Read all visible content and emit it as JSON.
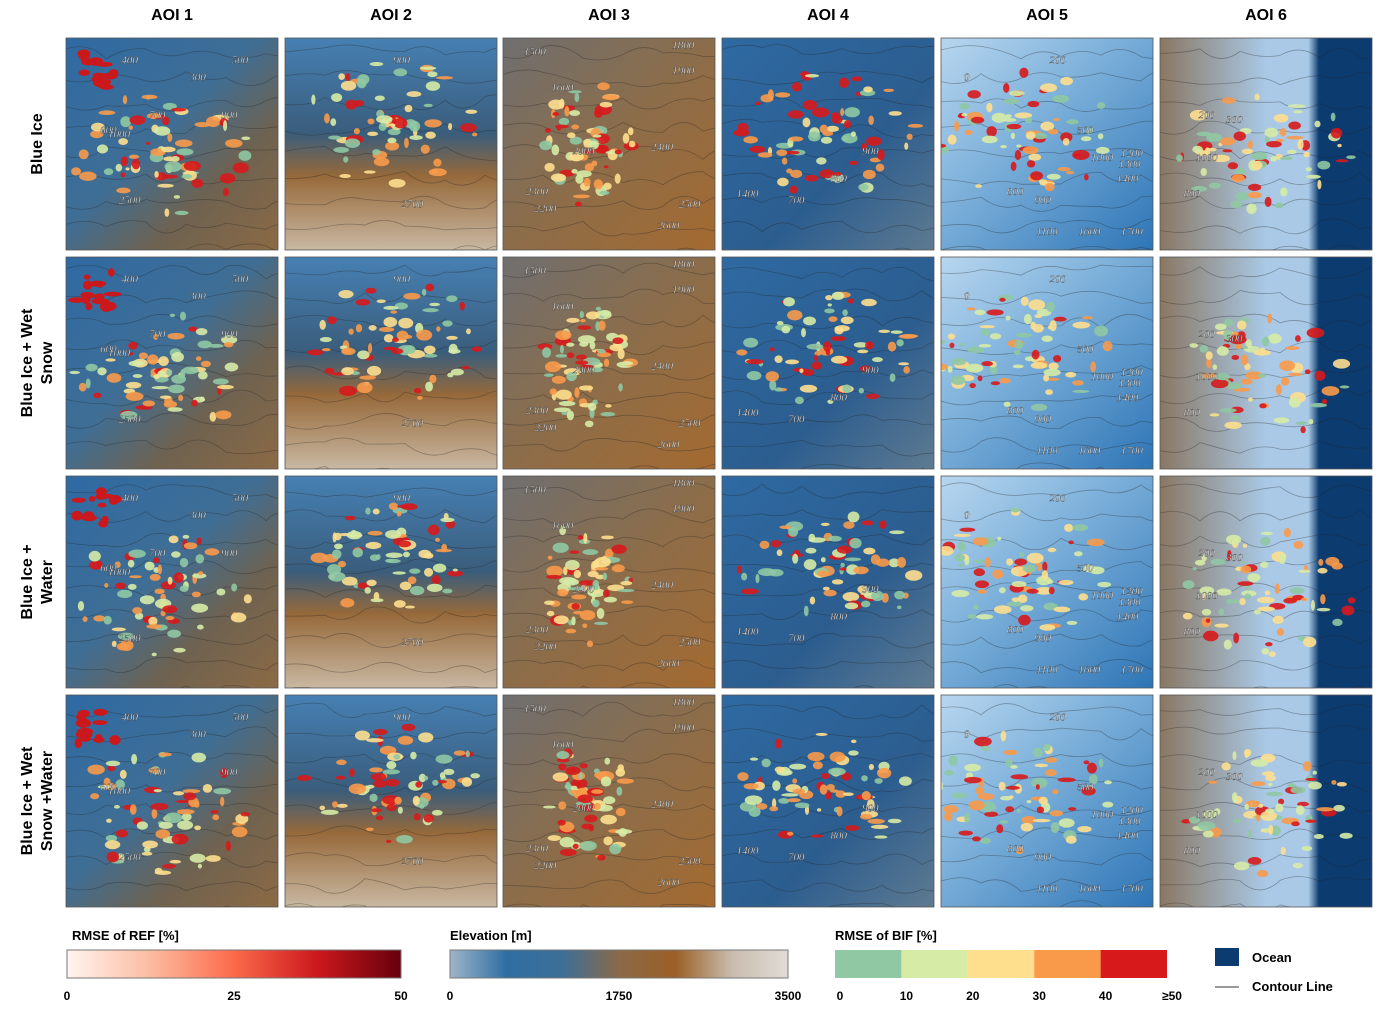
{
  "columns": [
    "AOI 1",
    "AOI 2",
    "AOI 3",
    "AOI 4",
    "AOI 5",
    "AOI 6"
  ],
  "rows": [
    [
      "Blue Ice"
    ],
    [
      "Blue Ice + Wet",
      "Snow"
    ],
    [
      "Blue Ice +",
      "Water"
    ],
    [
      "Blue Ice + Wet",
      "Snow +Water"
    ]
  ],
  "contour_labels": [
    [
      "400",
      "500",
      "300",
      "600",
      "700",
      "900",
      "1000",
      "2500"
    ],
    [
      "900",
      "2700"
    ],
    [
      "1500",
      "1800",
      "1900",
      "1600",
      "2000",
      "2400",
      "2300",
      "2200",
      "2500",
      "2600"
    ],
    [
      "1400",
      "700",
      "800",
      "900"
    ],
    [
      "0",
      "200",
      "500",
      "900",
      "1000",
      "1200",
      "1300",
      "1400",
      "800",
      "1100",
      "1600",
      "1700"
    ],
    [
      "200",
      "300",
      "1000",
      "800"
    ]
  ],
  "legends": {
    "ref": {
      "title": "RMSE of REF [%]",
      "ticks": [
        "0",
        "25",
        "50"
      ],
      "colors": [
        "#fff5f0",
        "#fcbba1",
        "#fb6a4a",
        "#cb181d",
        "#67000d"
      ]
    },
    "elevation": {
      "title": "Elevation [m]",
      "ticks": [
        "0",
        "1750",
        "3500"
      ],
      "colors": [
        "#9fb5c9",
        "#2f6ea3",
        "#3d6f97",
        "#8a6a48",
        "#9b5f26",
        "#c8bcad",
        "#e1dcd6"
      ]
    },
    "bif": {
      "title": "RMSE of BIF [%]",
      "ticks": [
        "0",
        "10",
        "20",
        "30",
        "40",
        "≥50"
      ],
      "colors": [
        "#8fc8a3",
        "#d6eba6",
        "#fddf8e",
        "#f89a4a",
        "#d7191c"
      ]
    },
    "ocean": {
      "label": "Ocean",
      "color": "#0c3b70"
    },
    "contour": {
      "label": "Contour Line",
      "color": "#999999"
    }
  }
}
